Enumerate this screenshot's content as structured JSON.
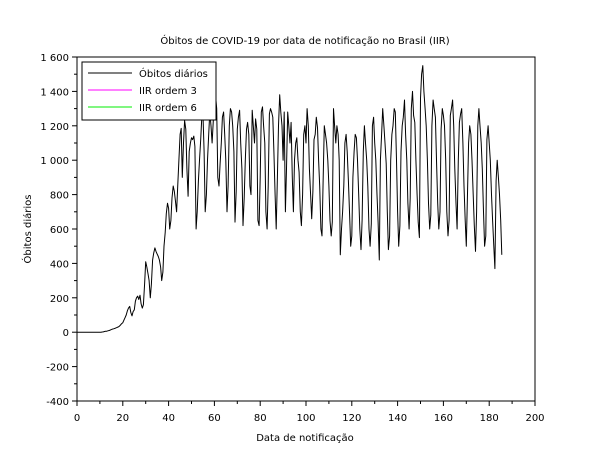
{
  "chart_data": {
    "type": "line",
    "title": "Óbitos de COVID-19 por data de notificação no Brasil (IIR)",
    "xlabel": "Data de notificação",
    "ylabel": "Óbitos diários",
    "xlim": [
      0,
      200
    ],
    "ylim": [
      -400,
      1600
    ],
    "x_ticks": [
      0,
      20,
      40,
      60,
      80,
      100,
      120,
      140,
      160,
      180,
      200
    ],
    "x_tick_labels": [
      "0",
      "20",
      "40",
      "60",
      "80",
      "100",
      "120",
      "140",
      "160",
      "180",
      "200"
    ],
    "y_ticks": [
      -400,
      -200,
      0,
      200,
      400,
      600,
      800,
      1000,
      1200,
      1400,
      1600
    ],
    "y_tick_labels": [
      "-400",
      "-200",
      "0",
      "200",
      "400",
      "600",
      "800",
      "1 000",
      "1 200",
      "1 400",
      "1 600"
    ],
    "grid": false,
    "legend_position": "top-left",
    "series": [
      {
        "name": "Óbitos diários",
        "color": "#000000",
        "values": [
          0,
          0,
          0,
          0,
          0,
          0,
          0,
          0,
          0,
          0,
          0,
          0,
          0,
          0,
          0,
          0,
          0,
          0,
          0,
          0,
          0,
          0,
          1,
          2,
          4,
          5,
          6,
          8,
          10,
          12,
          15,
          18,
          20,
          22,
          25,
          28,
          30,
          35,
          42,
          50,
          55,
          70,
          85,
          100,
          125,
          140,
          150,
          115,
          95,
          120,
          130,
          180,
          200,
          210,
          190,
          215,
          165,
          140,
          160,
          280,
          410,
          380,
          340,
          300,
          200,
          280,
          420,
          460,
          490,
          470,
          455,
          440,
          420,
          380,
          300,
          350,
          500,
          580,
          690,
          750,
          720,
          600,
          650,
          780,
          850,
          820,
          760,
          700,
          860,
          1000,
          1150,
          1185,
          900,
          1100,
          1230,
          1180,
          950,
          790,
          1050,
          1100,
          1130,
          1120,
          1140,
          1080,
          600,
          700,
          880,
          1000,
          1120,
          1250,
          1260,
          1050,
          700,
          800,
          1000,
          1150,
          1280,
          1200,
          1100,
          1230,
          1300,
          1380,
          1300,
          900,
          850,
          980,
          1100,
          1250,
          1280,
          1150,
          1000,
          700,
          850,
          1200,
          1300,
          1280,
          1200,
          1050,
          640,
          820,
          1180,
          1250,
          1290,
          1100,
          950,
          620,
          780,
          1000,
          1180,
          1220,
          1150,
          850,
          800,
          1290,
          1200,
          1100,
          1240,
          1180,
          650,
          620,
          900,
          1280,
          1310,
          1200,
          1100,
          700,
          600,
          850,
          1270,
          1300,
          1280,
          1250,
          1050,
          800,
          600,
          900,
          1200,
          1380,
          1280,
          1200,
          1000,
          1280,
          700,
          950,
          1280,
          1200,
          1100,
          1220,
          900,
          700,
          1000,
          1100,
          1130,
          1000,
          930,
          700,
          620,
          800,
          1150,
          1200,
          1100,
          1300,
          1200,
          950,
          800,
          660,
          820,
          1120,
          1150,
          1250,
          1190,
          1000,
          850,
          600,
          560,
          900,
          1200,
          1150,
          1100,
          1000,
          850,
          650,
          560,
          640,
          1300,
          1200,
          1100,
          1200,
          1150,
          1000,
          450,
          600,
          700,
          850,
          1100,
          1150,
          1050,
          880,
          700,
          500,
          560,
          900,
          1050,
          1150,
          1130,
          1000,
          800,
          600,
          480,
          650,
          1050,
          1200,
          1100,
          1000,
          850,
          600,
          500,
          630,
          1200,
          1250,
          1100,
          1000,
          800,
          640,
          420,
          1000,
          1150,
          1300,
          1200,
          1100,
          980,
          700,
          480,
          560,
          1000,
          1150,
          1200,
          1300,
          1280,
          1000,
          700,
          500,
          620,
          1050,
          1200,
          1250,
          1350,
          1150,
          1000,
          750,
          600,
          780,
          1300,
          1400,
          1260,
          1220,
          1000,
          800,
          640,
          550,
          1360,
          1500,
          1550,
          1400,
          1300,
          1200,
          1000,
          750,
          600,
          680,
          1200,
          1350,
          1300,
          1250,
          1000,
          750,
          600,
          700,
          1180,
          1300,
          1260,
          1200,
          1000,
          700,
          560,
          650,
          1260,
          1300,
          1350,
          1200,
          950,
          750,
          600,
          1000,
          1220,
          1270,
          1300,
          1100,
          850,
          650,
          500,
          780,
          1100,
          1200,
          1150,
          1000,
          800,
          620,
          470,
          700,
          1200,
          1300,
          1200,
          1100,
          950,
          700,
          500,
          560,
          1120,
          1200,
          1100,
          1000,
          800,
          650,
          500,
          370,
          880,
          1000,
          900,
          800,
          650,
          450
        ]
      },
      {
        "name": "IIR ordem 3",
        "color": "#ff00ff",
        "values": []
      },
      {
        "name": "IIR ordem 6",
        "color": "#00ee00",
        "values": []
      }
    ]
  }
}
